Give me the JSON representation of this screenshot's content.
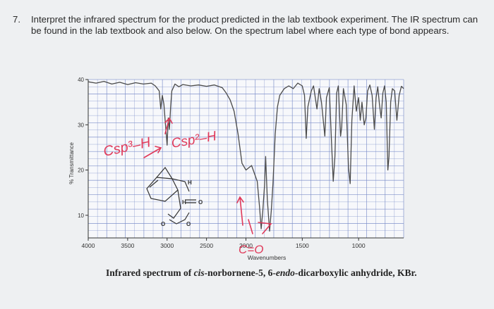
{
  "question": {
    "number": "7.",
    "text": "Interpret the infrared spectrum for the product predicted in the lab textbook experiment. The IR spectrum can be found in the lab textbook and also below. On the spectrum label where each type of bond appears."
  },
  "caption": {
    "prefix": "Infrared spectrum of ",
    "italic1": "cis",
    "middle": "-norbornene-5, 6-",
    "italic2": "endo",
    "suffix": "-dicarboxylic anhydride, KBr."
  },
  "annotations": {
    "csp3_h": "Csp³–H",
    "csp2_h": "Csp²–H",
    "c_o": "C=O"
  },
  "structure_labels": {
    "h_top": "H",
    "h_mid": "H",
    "o_mid": "O",
    "o_left": "O",
    "o_right": "O"
  },
  "colors": {
    "spectrum": "#4a4a4a",
    "grid": "#7a8cc8",
    "ink": "#e03a5a",
    "axes": "#333333"
  },
  "chart_data": {
    "type": "line",
    "xlabel": "Wavenumbers",
    "ylabel": "% Transmittance",
    "xlim": [
      4000,
      600
    ],
    "ylim": [
      5,
      40
    ],
    "x_ticks": [
      4000,
      3500,
      3000,
      2500,
      2000,
      1500,
      1000
    ],
    "x_tick_labels": [
      "4000",
      "3500",
      "3000",
      "2500",
      "2000",
      "1500",
      "1000"
    ],
    "y_ticks": [
      40,
      30,
      20,
      10
    ],
    "y_tick_labels": [
      "40",
      "30",
      "20",
      "10"
    ],
    "grid": true,
    "series": [
      {
        "points": [
          [
            4000,
            39.5
          ],
          [
            3900,
            39.2
          ],
          [
            3800,
            39.6
          ],
          [
            3700,
            39.0
          ],
          [
            3600,
            39.4
          ],
          [
            3500,
            38.9
          ],
          [
            3400,
            39.3
          ],
          [
            3300,
            39.0
          ],
          [
            3200,
            39.2
          ],
          [
            3150,
            38.6
          ],
          [
            3100,
            37.5
          ],
          [
            3080,
            33.5
          ],
          [
            3060,
            36.5
          ],
          [
            3040,
            34.5
          ],
          [
            3020,
            30.0
          ],
          [
            3000,
            25.5
          ],
          [
            2985,
            31.5
          ],
          [
            2970,
            29.0
          ],
          [
            2955,
            34.0
          ],
          [
            2940,
            37.5
          ],
          [
            2900,
            39.0
          ],
          [
            2850,
            38.4
          ],
          [
            2800,
            38.9
          ],
          [
            2700,
            38.6
          ],
          [
            2600,
            38.8
          ],
          [
            2500,
            38.5
          ],
          [
            2400,
            38.8
          ],
          [
            2300,
            38.2
          ],
          [
            2250,
            37.0
          ],
          [
            2200,
            35.5
          ],
          [
            2150,
            33.0
          ],
          [
            2100,
            28.0
          ],
          [
            2050,
            21.5
          ],
          [
            2000,
            20.0
          ],
          [
            1950,
            21.0
          ],
          [
            1900,
            17.5
          ],
          [
            1880,
            12.0
          ],
          [
            1865,
            7.0
          ],
          [
            1850,
            11.0
          ],
          [
            1835,
            16.5
          ],
          [
            1825,
            23.0
          ],
          [
            1810,
            13.5
          ],
          [
            1790,
            6.5
          ],
          [
            1775,
            11.0
          ],
          [
            1760,
            17.0
          ],
          [
            1740,
            28.0
          ],
          [
            1720,
            34.0
          ],
          [
            1700,
            36.5
          ],
          [
            1660,
            38.0
          ],
          [
            1620,
            38.6
          ],
          [
            1580,
            38.0
          ],
          [
            1540,
            39.2
          ],
          [
            1500,
            38.6
          ],
          [
            1480,
            36.5
          ],
          [
            1465,
            27.0
          ],
          [
            1450,
            34.0
          ],
          [
            1420,
            37.5
          ],
          [
            1400,
            38.6
          ],
          [
            1370,
            33.5
          ],
          [
            1350,
            38.0
          ],
          [
            1330,
            35.0
          ],
          [
            1300,
            27.5
          ],
          [
            1285,
            36.0
          ],
          [
            1260,
            38.2
          ],
          [
            1240,
            26.0
          ],
          [
            1225,
            17.5
          ],
          [
            1210,
            23.0
          ],
          [
            1195,
            37.0
          ],
          [
            1180,
            38.6
          ],
          [
            1160,
            27.5
          ],
          [
            1150,
            29.5
          ],
          [
            1135,
            38.0
          ],
          [
            1110,
            34.5
          ],
          [
            1090,
            20.5
          ],
          [
            1075,
            17.0
          ],
          [
            1060,
            31.0
          ],
          [
            1040,
            38.6
          ],
          [
            1020,
            33.0
          ],
          [
            1000,
            36.0
          ],
          [
            985,
            31.0
          ],
          [
            970,
            35.0
          ],
          [
            950,
            30.0
          ],
          [
            935,
            31.5
          ],
          [
            920,
            37.5
          ],
          [
            900,
            38.8
          ],
          [
            880,
            36.5
          ],
          [
            860,
            29.0
          ],
          [
            845,
            36.0
          ],
          [
            830,
            38.4
          ],
          [
            815,
            34.5
          ],
          [
            800,
            31.5
          ],
          [
            785,
            37.0
          ],
          [
            770,
            38.6
          ],
          [
            755,
            35.0
          ],
          [
            740,
            20.0
          ],
          [
            730,
            23.0
          ],
          [
            715,
            35.0
          ],
          [
            700,
            38.0
          ],
          [
            680,
            37.5
          ],
          [
            660,
            31.0
          ],
          [
            640,
            36.5
          ],
          [
            620,
            38.5
          ],
          [
            600,
            38.0
          ]
        ]
      }
    ]
  }
}
